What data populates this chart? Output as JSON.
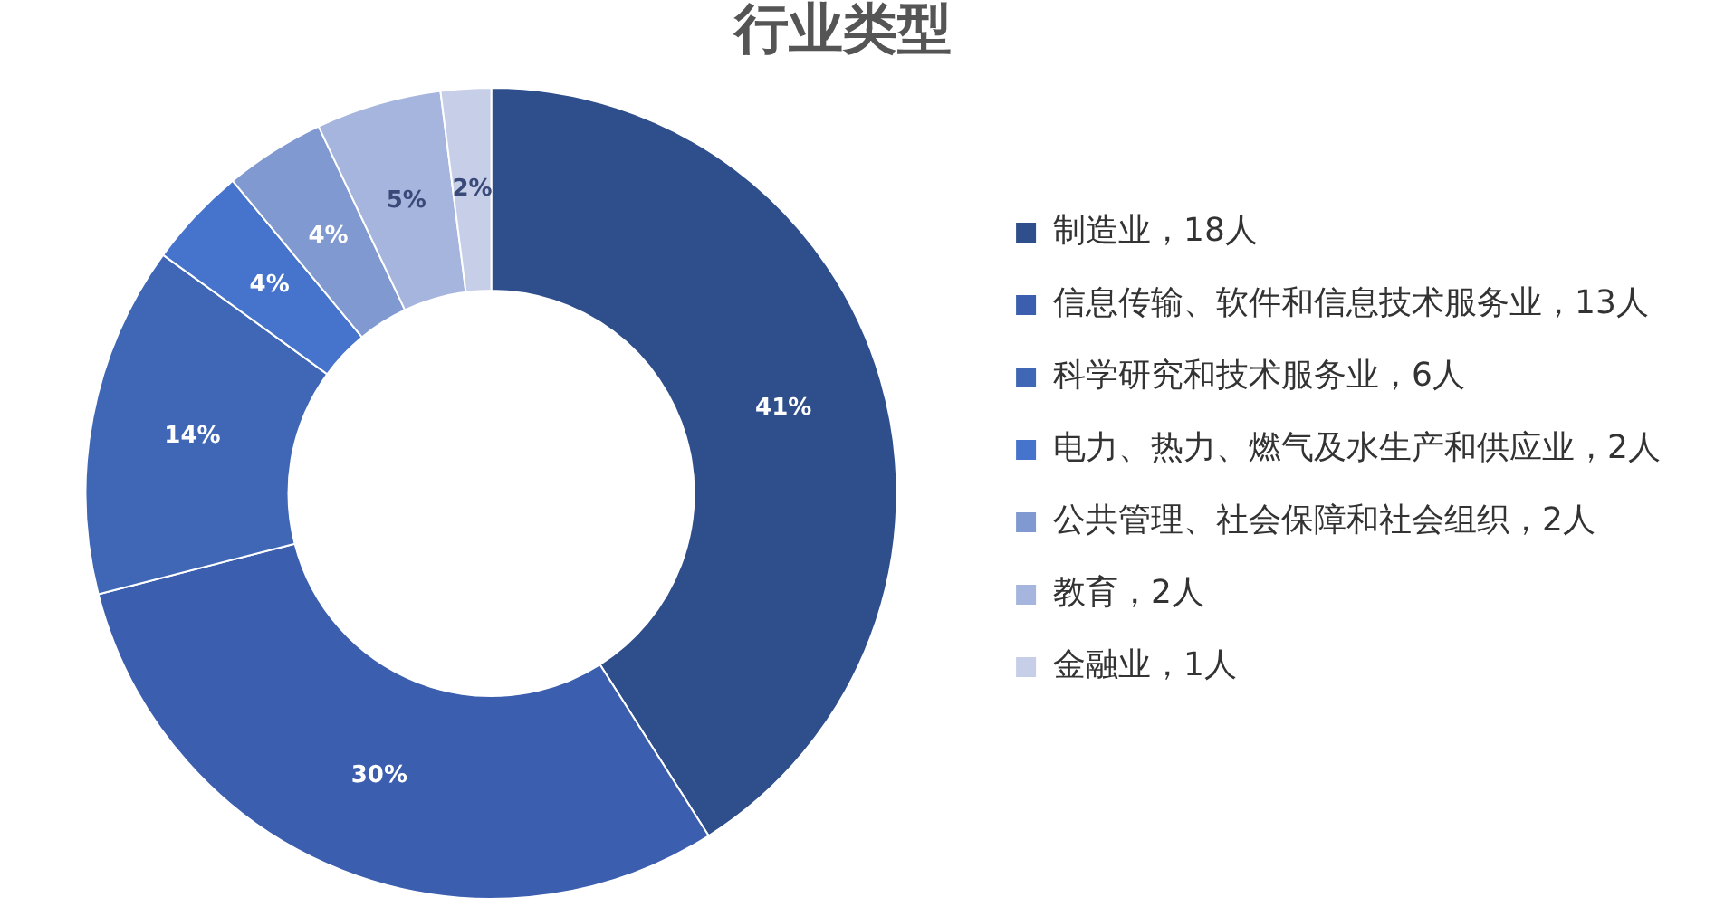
{
  "chart_data": {
    "type": "donut",
    "title": "行业类型",
    "categories": [
      "制造业，18人",
      "信息传输、软件和信息技术服务业，13人",
      "科学研究和技术服务业，6人",
      "电力、热力、燃气及水生产和供应业，2人",
      "公共管理、社会保障和社会组织，2人",
      "教育，2人",
      "金融业，1人"
    ],
    "values": [
      41,
      30,
      14,
      4,
      4,
      5,
      2
    ],
    "value_labels": [
      "41%",
      "30%",
      "14%",
      "4%",
      "4%",
      "5%",
      "2%"
    ],
    "colors": [
      "#2f4e8c",
      "#3b5eae",
      "#3f67b6",
      "#4673cb",
      "#8099d0",
      "#a6b5dd",
      "#c6cee8"
    ],
    "legend": "right"
  }
}
